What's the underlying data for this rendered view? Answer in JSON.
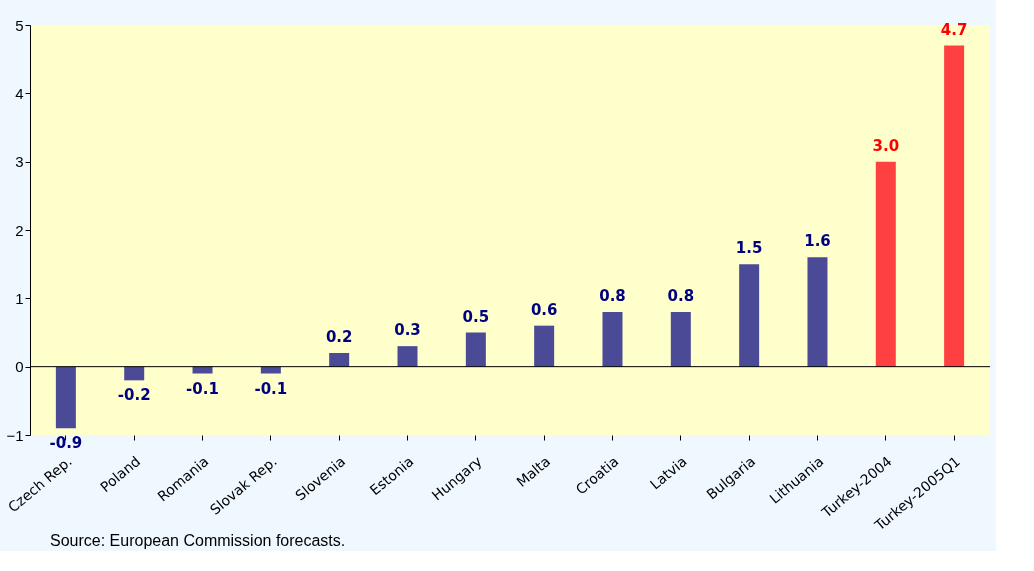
{
  "chart_data": {
    "type": "bar",
    "categories": [
      "Czech Rep.",
      "Poland",
      "Romania",
      "Slovak Rep.",
      "Slovenia",
      "Estonia",
      "Hungary",
      "Malta",
      "Croatia",
      "Latvia",
      "Bulgaria",
      "Lithuania",
      "Turkey-2004",
      "Turkey-2005Q1"
    ],
    "values": [
      -0.9,
      -0.2,
      -0.1,
      -0.1,
      0.2,
      0.3,
      0.5,
      0.6,
      0.8,
      0.8,
      1.5,
      1.6,
      3.0,
      4.7
    ],
    "value_labels": [
      "-0.9",
      "-0.2",
      "-0.1",
      "-0.1",
      "0.2",
      "0.3",
      "0.5",
      "0.6",
      "0.8",
      "0.8",
      "1.5",
      "1.6",
      "3.0",
      "4.7"
    ],
    "colors": [
      "#4a4a96",
      "#4a4a96",
      "#4a4a96",
      "#4a4a96",
      "#4a4a96",
      "#4a4a96",
      "#4a4a96",
      "#4a4a96",
      "#4a4a96",
      "#4a4a96",
      "#4a4a96",
      "#4a4a96",
      "#ff4040",
      "#ff4040"
    ],
    "ylim": [
      -1,
      5
    ],
    "yticks": [
      -1,
      0,
      1,
      2,
      3,
      4,
      5
    ],
    "grid": false,
    "ref_lines": [
      {
        "axis": "y",
        "value": 0,
        "color": "#000000"
      }
    ],
    "annotations": [
      "Source: European Commission forecasts."
    ]
  }
}
